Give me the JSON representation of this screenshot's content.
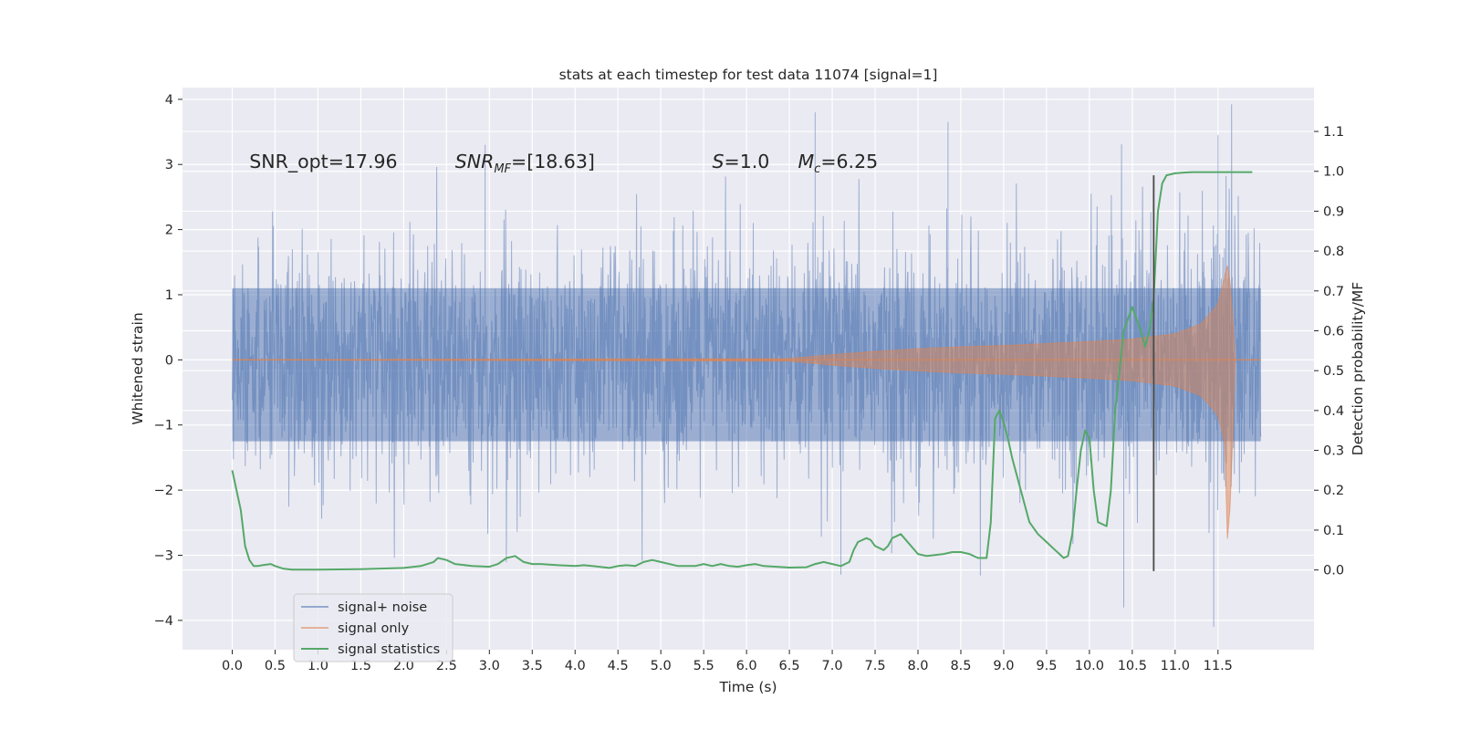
{
  "chart_data": {
    "type": "line",
    "title": "stats at each timestep for test data 11074 [signal=1]",
    "xlabel": "Time (s)",
    "ylabel": "Whitened strain",
    "ylabel_right": "Detection probability/MF",
    "xlim": [
      -0.58,
      12.62
    ],
    "ylim": [
      -4.45,
      4.18
    ],
    "ylim_right": [
      -0.2,
      1.21
    ],
    "x_ticks": [
      0.0,
      0.5,
      1.0,
      1.5,
      2.0,
      2.5,
      3.0,
      3.5,
      4.0,
      4.5,
      5.0,
      5.5,
      6.0,
      6.5,
      7.0,
      7.5,
      8.0,
      8.5,
      9.0,
      9.5,
      10.0,
      10.5,
      11.0,
      11.5
    ],
    "x_tick_labels": [
      "0.0",
      "0.5",
      "1.0",
      "1.5",
      "2.0",
      "2.5",
      "3.0",
      "3.5",
      "4.0",
      "4.5",
      "5.0",
      "5.5",
      "6.0",
      "6.5",
      "7.0",
      "7.5",
      "8.0",
      "8.5",
      "9.0",
      "9.5",
      "10.0",
      "10.5",
      "11.0",
      "11.5"
    ],
    "y_ticks": [
      -4,
      -3,
      -2,
      -1,
      0,
      1,
      2,
      3,
      4
    ],
    "y_tick_labels": [
      "−4",
      "−3",
      "−2",
      "−1",
      "0",
      "1",
      "2",
      "3",
      "4"
    ],
    "y_ticks_right": [
      0.0,
      0.1,
      0.2,
      0.3,
      0.4,
      0.5,
      0.6,
      0.7,
      0.8,
      0.9,
      1.0,
      1.1
    ],
    "y_tick_labels_right": [
      "0.0",
      "0.1",
      "0.2",
      "0.3",
      "0.4",
      "0.5",
      "0.6",
      "0.7",
      "0.8",
      "0.9",
      "1.0",
      "1.1"
    ],
    "grid": true,
    "legend_position": "lower-left",
    "annotations": [
      {
        "text": "SNR_opt=17.96",
        "x": 0.2,
        "y": 2.95
      },
      {
        "text": "SNR_MF=[18.63]",
        "x": 2.6,
        "y": 2.95
      },
      {
        "text": "S=1.0",
        "x": 5.6,
        "y": 2.95
      },
      {
        "text": "M_c=6.25",
        "x": 6.6,
        "y": 2.95
      }
    ],
    "vline": {
      "x": 10.75,
      "y_right": [
        -0.003,
        0.99
      ]
    },
    "series": [
      {
        "name": "signal+ noise",
        "color": "#4c72b0",
        "axis": "left",
        "t_range": [
          0.0,
          12.0
        ],
        "typical_envelope": [
          -1.25,
          1.1
        ],
        "max_abs_typical": 2.6,
        "spikes": [
          [
            6.8,
            3.8
          ],
          [
            8.35,
            3.65
          ],
          [
            7.1,
            -3.3
          ],
          [
            10.4,
            -3.8
          ],
          [
            11.45,
            -4.1
          ],
          [
            2.95,
            3.3
          ],
          [
            11.5,
            3.45
          ]
        ]
      },
      {
        "name": "signal only",
        "color": "#dd8452",
        "axis": "left",
        "envelope": {
          "t": [
            0.0,
            6.5,
            7.0,
            7.5,
            8.0,
            8.5,
            9.0,
            9.5,
            10.0,
            10.5,
            11.0,
            11.3,
            11.5,
            11.62,
            11.66,
            11.7,
            12.0
          ],
          "amp": [
            0.0,
            0.02,
            0.08,
            0.13,
            0.17,
            0.2,
            0.22,
            0.25,
            0.28,
            0.32,
            0.4,
            0.55,
            0.85,
            1.5,
            0.9,
            0.0,
            0.0
          ]
        }
      },
      {
        "name": "signal statistics",
        "color": "#55a868",
        "axis": "right",
        "x": [
          0.0,
          0.1,
          0.15,
          0.2,
          0.25,
          0.3,
          0.35,
          0.45,
          0.5,
          0.6,
          0.7,
          1.0,
          1.5,
          2.0,
          2.2,
          2.35,
          2.4,
          2.5,
          2.6,
          2.8,
          3.0,
          3.1,
          3.2,
          3.3,
          3.4,
          3.5,
          3.6,
          3.8,
          4.0,
          4.1,
          4.2,
          4.4,
          4.5,
          4.6,
          4.7,
          4.8,
          4.9,
          5.0,
          5.2,
          5.4,
          5.5,
          5.6,
          5.7,
          5.8,
          5.9,
          6.0,
          6.1,
          6.2,
          6.5,
          6.7,
          6.8,
          6.9,
          7.0,
          7.1,
          7.2,
          7.25,
          7.3,
          7.4,
          7.45,
          7.5,
          7.6,
          7.65,
          7.7,
          7.8,
          8.0,
          8.1,
          8.3,
          8.4,
          8.5,
          8.6,
          8.7,
          8.8,
          8.85,
          8.9,
          8.95,
          9.0,
          9.05,
          9.1,
          9.2,
          9.3,
          9.4,
          9.5,
          9.6,
          9.65,
          9.7,
          9.75,
          9.8,
          9.85,
          9.9,
          9.95,
          10.0,
          10.05,
          10.1,
          10.2,
          10.25,
          10.3,
          10.4,
          10.5,
          10.6,
          10.65,
          10.7,
          10.75,
          10.8,
          10.85,
          10.9,
          11.0,
          11.1,
          11.2,
          11.5,
          11.9
        ],
        "values": [
          0.25,
          0.15,
          0.06,
          0.025,
          0.01,
          0.01,
          0.012,
          0.015,
          0.01,
          0.003,
          0.001,
          0.001,
          0.002,
          0.005,
          0.01,
          0.02,
          0.03,
          0.025,
          0.015,
          0.01,
          0.008,
          0.015,
          0.03,
          0.035,
          0.02,
          0.015,
          0.015,
          0.012,
          0.01,
          0.012,
          0.01,
          0.005,
          0.01,
          0.012,
          0.01,
          0.02,
          0.025,
          0.02,
          0.01,
          0.01,
          0.015,
          0.01,
          0.015,
          0.01,
          0.008,
          0.012,
          0.015,
          0.01,
          0.006,
          0.007,
          0.015,
          0.02,
          0.015,
          0.01,
          0.02,
          0.05,
          0.07,
          0.08,
          0.075,
          0.06,
          0.05,
          0.06,
          0.08,
          0.09,
          0.04,
          0.035,
          0.04,
          0.045,
          0.045,
          0.04,
          0.03,
          0.03,
          0.12,
          0.38,
          0.4,
          0.37,
          0.33,
          0.28,
          0.2,
          0.12,
          0.09,
          0.07,
          0.05,
          0.04,
          0.03,
          0.035,
          0.09,
          0.2,
          0.3,
          0.35,
          0.33,
          0.2,
          0.12,
          0.11,
          0.2,
          0.4,
          0.6,
          0.66,
          0.6,
          0.56,
          0.6,
          0.68,
          0.9,
          0.97,
          0.99,
          0.995,
          0.997,
          0.998,
          0.998,
          0.998
        ]
      }
    ]
  }
}
